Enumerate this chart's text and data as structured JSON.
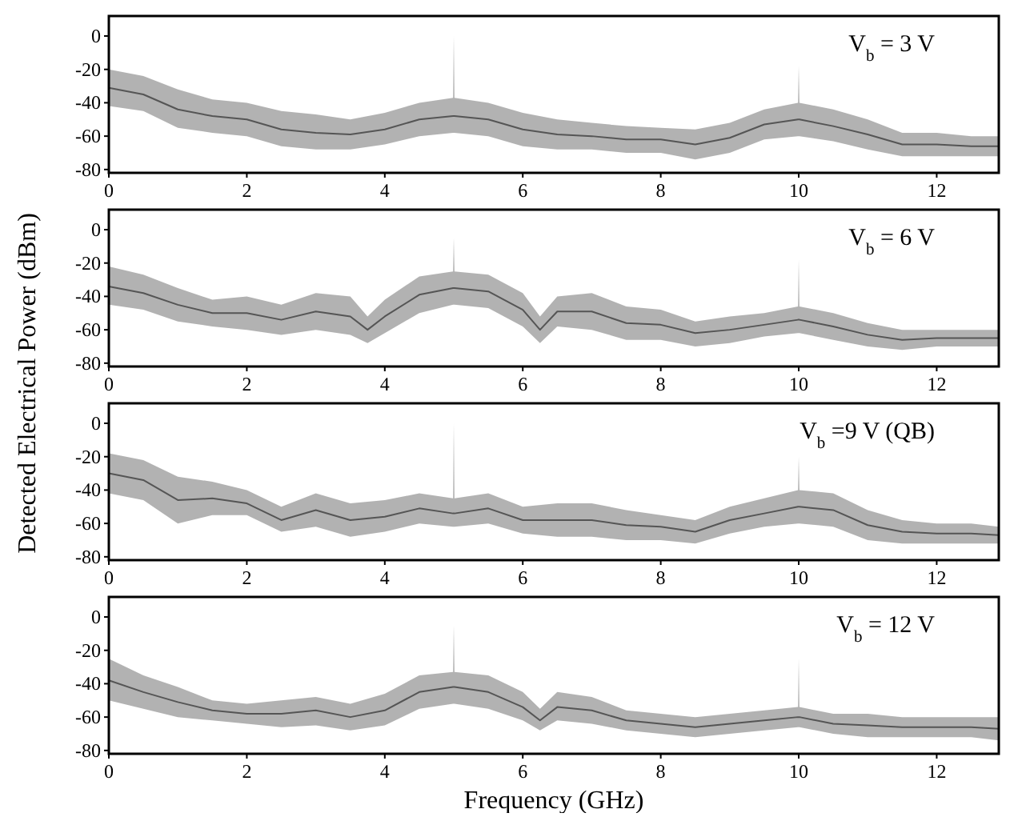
{
  "chart_data": [
    {
      "type": "line",
      "ylabel": "Detected Electrical Power (dBm)",
      "annotations": [
        "V$_{b}$ = 3 V"
      ],
      "xlim": [
        0,
        12.9
      ],
      "ylim": [
        -82,
        12
      ],
      "xticks": [
        0,
        2,
        4,
        6,
        8,
        10,
        12
      ],
      "yticks": [
        0,
        -20,
        -40,
        -60,
        -80
      ],
      "series": [
        {
          "color": "#555555",
          "x": [
            0,
            0.5,
            1,
            1.5,
            2,
            2.5,
            3,
            3.5,
            4,
            4.5,
            4.99,
            5,
            5.01,
            5.5,
            6,
            6.5,
            7,
            7.5,
            8,
            8.5,
            9,
            9.5,
            9.99,
            10,
            10.01,
            10.5,
            11,
            11.5,
            12,
            12.5,
            12.9
          ],
          "values": [
            -31,
            -35,
            -44,
            -48,
            -50,
            -56,
            -58,
            -59,
            -56,
            -50,
            -48,
            -48,
            -48,
            -50,
            -56,
            -59,
            -60,
            -62,
            -62,
            -65,
            -61,
            -53,
            -50,
            -50,
            -50,
            -54,
            -59,
            -65,
            -65,
            -66,
            -66
          ],
          "lower": [
            -42,
            -45,
            -55,
            -58,
            -60,
            -66,
            -68,
            -68,
            -65,
            -60,
            -58,
            -58,
            -58,
            -60,
            -66,
            -68,
            -68,
            -70,
            -70,
            -74,
            -70,
            -62,
            -60,
            -60,
            -60,
            -63,
            -68,
            -72,
            -72,
            -72,
            -72
          ],
          "upper": [
            -20,
            -24,
            -32,
            -38,
            -40,
            -45,
            -47,
            -50,
            -46,
            -40,
            -37,
            0,
            -37,
            -40,
            -46,
            -50,
            -52,
            -54,
            -55,
            -56,
            -52,
            -44,
            -40,
            -18,
            -40,
            -44,
            -50,
            -58,
            -58,
            -60,
            -60
          ]
        }
      ]
    },
    {
      "type": "line",
      "annotations": [
        "V$_{b}$ = 6 V"
      ],
      "xlim": [
        0,
        12.9
      ],
      "ylim": [
        -82,
        12
      ],
      "xticks": [
        0,
        2,
        4,
        6,
        8,
        10,
        12
      ],
      "yticks": [
        0,
        -20,
        -40,
        -60,
        -80
      ],
      "series": [
        {
          "color": "#555555",
          "x": [
            0,
            0.5,
            1,
            1.5,
            2,
            2.5,
            3,
            3.5,
            3.75,
            4,
            4.5,
            4.99,
            5,
            5.01,
            5.5,
            6,
            6.25,
            6.5,
            7,
            7.5,
            8,
            8.5,
            9,
            9.5,
            9.99,
            10,
            10.01,
            10.5,
            11,
            11.5,
            12,
            12.5,
            12.9
          ],
          "values": [
            -34,
            -38,
            -45,
            -50,
            -50,
            -54,
            -49,
            -52,
            -60,
            -52,
            -39,
            -35,
            -35,
            -35,
            -37,
            -48,
            -60,
            -49,
            -49,
            -56,
            -57,
            -62,
            -60,
            -57,
            -54,
            -54,
            -54,
            -58,
            -63,
            -66,
            -65,
            -65,
            -65
          ],
          "lower": [
            -45,
            -48,
            -55,
            -58,
            -60,
            -63,
            -60,
            -63,
            -68,
            -62,
            -50,
            -45,
            -45,
            -45,
            -47,
            -58,
            -68,
            -58,
            -60,
            -66,
            -66,
            -70,
            -68,
            -64,
            -62,
            -62,
            -62,
            -66,
            -70,
            -72,
            -70,
            -70,
            -70
          ],
          "upper": [
            -22,
            -27,
            -35,
            -42,
            -40,
            -45,
            -38,
            -40,
            -52,
            -42,
            -28,
            -25,
            -5,
            -25,
            -27,
            -38,
            -52,
            -40,
            -38,
            -46,
            -48,
            -55,
            -52,
            -50,
            -46,
            -18,
            -46,
            -50,
            -56,
            -60,
            -60,
            -60,
            -60
          ]
        }
      ]
    },
    {
      "type": "line",
      "annotations": [
        "V$_{b}$ =9 V (QB)"
      ],
      "xlim": [
        0,
        12.9
      ],
      "ylim": [
        -82,
        12
      ],
      "xticks": [
        0,
        2,
        4,
        6,
        8,
        10,
        12
      ],
      "yticks": [
        0,
        -20,
        -40,
        -60,
        -80
      ],
      "series": [
        {
          "color": "#555555",
          "x": [
            0,
            0.5,
            1,
            1.5,
            2,
            2.5,
            3,
            3.5,
            4,
            4.5,
            4.99,
            5,
            5.01,
            5.5,
            6,
            6.5,
            7,
            7.5,
            8,
            8.5,
            9,
            9.5,
            9.99,
            10,
            10.01,
            10.5,
            11,
            11.5,
            12,
            12.5,
            12.9
          ],
          "values": [
            -30,
            -34,
            -46,
            -45,
            -48,
            -58,
            -52,
            -58,
            -56,
            -51,
            -54,
            -54,
            -54,
            -51,
            -58,
            -58,
            -58,
            -61,
            -62,
            -65,
            -58,
            -54,
            -50,
            -50,
            -50,
            -52,
            -61,
            -65,
            -66,
            -66,
            -67
          ],
          "lower": [
            -42,
            -46,
            -60,
            -55,
            -55,
            -65,
            -62,
            -68,
            -65,
            -60,
            -62,
            -62,
            -62,
            -60,
            -66,
            -68,
            -68,
            -70,
            -70,
            -72,
            -66,
            -62,
            -60,
            -60,
            -60,
            -62,
            -70,
            -72,
            -72,
            -72,
            -72
          ],
          "upper": [
            -18,
            -22,
            -32,
            -35,
            -40,
            -50,
            -42,
            -48,
            -46,
            -42,
            -45,
            0,
            -45,
            -42,
            -50,
            -48,
            -48,
            -52,
            -55,
            -58,
            -50,
            -45,
            -40,
            -20,
            -40,
            -42,
            -52,
            -58,
            -60,
            -60,
            -62
          ]
        }
      ]
    },
    {
      "type": "line",
      "xlabel": "Frequency (GHz)",
      "annotations": [
        "V$_{b}$ = 12 V"
      ],
      "xlim": [
        0,
        12.9
      ],
      "ylim": [
        -82,
        12
      ],
      "xticks": [
        0,
        2,
        4,
        6,
        8,
        10,
        12
      ],
      "yticks": [
        0,
        -20,
        -40,
        -60,
        -80
      ],
      "series": [
        {
          "color": "#555555",
          "x": [
            0,
            0.5,
            1,
            1.5,
            2,
            2.5,
            3,
            3.5,
            4,
            4.5,
            4.99,
            5,
            5.01,
            5.5,
            6,
            6.25,
            6.5,
            7,
            7.5,
            8,
            8.5,
            9,
            9.5,
            9.99,
            10,
            10.01,
            10.5,
            11,
            11.5,
            12,
            12.5,
            12.9
          ],
          "values": [
            -38,
            -45,
            -51,
            -56,
            -58,
            -58,
            -56,
            -60,
            -56,
            -45,
            -42,
            -42,
            -42,
            -45,
            -54,
            -62,
            -54,
            -56,
            -62,
            -64,
            -66,
            -64,
            -62,
            -60,
            -60,
            -60,
            -64,
            -65,
            -66,
            -66,
            -66,
            -67
          ],
          "lower": [
            -50,
            -55,
            -60,
            -62,
            -64,
            -66,
            -65,
            -68,
            -65,
            -55,
            -52,
            -52,
            -52,
            -55,
            -62,
            -68,
            -62,
            -64,
            -68,
            -70,
            -72,
            -70,
            -68,
            -66,
            -66,
            -66,
            -70,
            -72,
            -72,
            -72,
            -72,
            -74
          ],
          "upper": [
            -25,
            -35,
            -42,
            -50,
            -52,
            -50,
            -48,
            -52,
            -46,
            -35,
            -33,
            -5,
            -33,
            -35,
            -45,
            -55,
            -45,
            -48,
            -56,
            -58,
            -60,
            -58,
            -56,
            -54,
            -25,
            -54,
            -58,
            -58,
            -60,
            -60,
            -60,
            -60
          ]
        }
      ]
    }
  ]
}
